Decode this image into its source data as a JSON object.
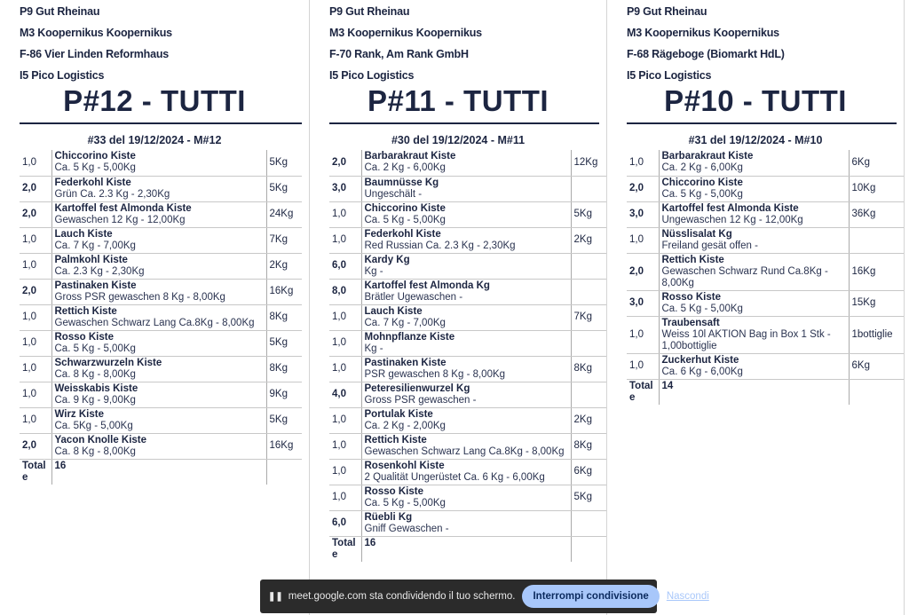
{
  "columns": [
    {
      "header": [
        "P9 Gut Rheinau",
        "M3 Koopernikus Koopernikus",
        "F-86 Vier Linden Reformhaus",
        "I5 Pico Logistics"
      ],
      "title": "P#12 - TUTTI",
      "order": "#33 del 19/12/2024 - M#12",
      "rows": [
        {
          "qty": "1,0",
          "name": "Chiccorino Kiste",
          "desc": "Ca. 5 Kg - 5,00Kg",
          "kg": "5Kg"
        },
        {
          "qty": "2,0",
          "name": "Federkohl Kiste",
          "desc": "Grün Ca. 2.3 Kg - 2,30Kg",
          "kg": "5Kg"
        },
        {
          "qty": "2,0",
          "name": "Kartoffel fest Almonda Kiste",
          "desc": "Gewaschen 12 Kg - 12,00Kg",
          "kg": "24Kg"
        },
        {
          "qty": "1,0",
          "name": "Lauch Kiste",
          "desc": "Ca. 7 Kg - 7,00Kg",
          "kg": "7Kg"
        },
        {
          "qty": "1,0",
          "name": "Palmkohl Kiste",
          "desc": "Ca. 2.3 Kg - 2,30Kg",
          "kg": "2Kg"
        },
        {
          "qty": "2,0",
          "name": "Pastinaken Kiste",
          "desc": "Gross PSR gewaschen 8 Kg - 8,00Kg",
          "kg": "16Kg"
        },
        {
          "qty": "1,0",
          "name": "Rettich Kiste",
          "desc": "Gewaschen Schwarz Lang Ca.8Kg - 8,00Kg",
          "kg": "8Kg"
        },
        {
          "qty": "1,0",
          "name": "Rosso Kiste",
          "desc": "Ca. 5 Kg - 5,00Kg",
          "kg": "5Kg"
        },
        {
          "qty": "1,0",
          "name": "Schwarzwurzeln Kiste",
          "desc": "Ca. 8 Kg - 8,00Kg",
          "kg": "8Kg"
        },
        {
          "qty": "1,0",
          "name": "Weisskabis Kiste",
          "desc": "Ca. 9 Kg - 9,00Kg",
          "kg": "9Kg"
        },
        {
          "qty": "1,0",
          "name": "Wirz Kiste",
          "desc": "Ca. 5Kg - 5,00Kg",
          "kg": "5Kg"
        },
        {
          "qty": "2,0",
          "name": "Yacon Knolle Kiste",
          "desc": "Ca. 8 Kg - 8,00Kg",
          "kg": "16Kg"
        }
      ],
      "total_label": "Totale",
      "total": "16"
    },
    {
      "header": [
        "P9 Gut Rheinau",
        "M3 Koopernikus Koopernikus",
        "F-70 Rank, Am Rank GmbH",
        "I5 Pico Logistics"
      ],
      "title": "P#11 - TUTTI",
      "order": "#30 del 19/12/2024 - M#11",
      "rows": [
        {
          "qty": "2,0",
          "name": "Barbarakraut Kiste",
          "desc": "Ca. 2 Kg - 6,00Kg",
          "kg": "12Kg"
        },
        {
          "qty": "3,0",
          "name": "Baumnüsse Kg",
          "desc": "Ungeschält -",
          "kg": ""
        },
        {
          "qty": "1,0",
          "name": "Chiccorino Kiste",
          "desc": "Ca. 5 Kg - 5,00Kg",
          "kg": "5Kg"
        },
        {
          "qty": "1,0",
          "name": "Federkohl Kiste",
          "desc": "Red Russian Ca. 2.3 Kg - 2,30Kg",
          "kg": "2Kg"
        },
        {
          "qty": "6,0",
          "name": "Kardy Kg",
          "desc": "Kg -",
          "kg": ""
        },
        {
          "qty": "8,0",
          "name": "Kartoffel fest Almonda Kg",
          "desc": "Brätler Ugewaschen -",
          "kg": ""
        },
        {
          "qty": "1,0",
          "name": "Lauch Kiste",
          "desc": "Ca. 7 Kg - 7,00Kg",
          "kg": "7Kg"
        },
        {
          "qty": "1,0",
          "name": "Mohnpflanze Kiste",
          "desc": "Kg -",
          "kg": ""
        },
        {
          "qty": "1,0",
          "name": "Pastinaken Kiste",
          "desc": "PSR gewaschen 8 Kg - 8,00Kg",
          "kg": "8Kg"
        },
        {
          "qty": "4,0",
          "name": "Peteresilienwurzel Kg",
          "desc": "Gross PSR gewaschen -",
          "kg": ""
        },
        {
          "qty": "1,0",
          "name": "Portulak Kiste",
          "desc": "Ca. 2 Kg - 2,00Kg",
          "kg": "2Kg"
        },
        {
          "qty": "1,0",
          "name": "Rettich Kiste",
          "desc": "Gewaschen Schwarz Lang Ca.8Kg - 8,00Kg",
          "kg": "8Kg"
        },
        {
          "qty": "1,0",
          "name": "Rosenkohl Kiste",
          "desc": "2 Qualität Ungerüstet Ca. 6 Kg - 6,00Kg",
          "kg": "6Kg"
        },
        {
          "qty": "1,0",
          "name": "Rosso Kiste",
          "desc": "Ca. 5 Kg - 5,00Kg",
          "kg": "5Kg"
        },
        {
          "qty": "6,0",
          "name": "Rüebli Kg",
          "desc": "Gniff Gewaschen -",
          "kg": ""
        }
      ],
      "total_label": "Totale",
      "total": "16"
    },
    {
      "header": [
        "P9 Gut Rheinau",
        "M3 Koopernikus Koopernikus",
        "F-68 Rägeboge (Biomarkt HdL)",
        "I5 Pico Logistics"
      ],
      "title": "P#10 - TUTTI",
      "order": "#31 del 19/12/2024 - M#10",
      "rows": [
        {
          "qty": "1,0",
          "name": "Barbarakraut Kiste",
          "desc": "Ca. 2 Kg - 6,00Kg",
          "kg": "6Kg"
        },
        {
          "qty": "2,0",
          "name": "Chiccorino Kiste",
          "desc": "Ca. 5 Kg - 5,00Kg",
          "kg": "10Kg"
        },
        {
          "qty": "3,0",
          "name": "Kartoffel fest Almonda Kiste",
          "desc": "Ungewaschen 12 Kg - 12,00Kg",
          "kg": "36Kg"
        },
        {
          "qty": "1,0",
          "name": "Nüsslisalat Kg",
          "desc": "Freiland gesät offen -",
          "kg": ""
        },
        {
          "qty": "2,0",
          "name": "Rettich Kiste",
          "desc": "Gewaschen Schwarz Rund Ca.8Kg - 8,00Kg",
          "kg": "16Kg"
        },
        {
          "qty": "3,0",
          "name": "Rosso Kiste",
          "desc": "Ca. 5 Kg - 5,00Kg",
          "kg": "15Kg"
        },
        {
          "qty": "1,0",
          "name": "Traubensaft",
          "desc": "Weiss 10l AKTION Bag in Box 1 Stk - 1,00bottiglie",
          "kg": "1bottiglie"
        },
        {
          "qty": "1,0",
          "name": "Zuckerhut Kiste",
          "desc": "Ca. 6 Kg - 6,00Kg",
          "kg": "6Kg"
        }
      ],
      "total_label": "Totale",
      "total": "14"
    }
  ],
  "share_bar": {
    "icon": "pause-icon",
    "message": "meet.google.com sta condividendo il tuo schermo.",
    "stop_label": "Interrompi condivisione",
    "hide_label": "Nascondi",
    "accent": "#a8c7fa"
  }
}
